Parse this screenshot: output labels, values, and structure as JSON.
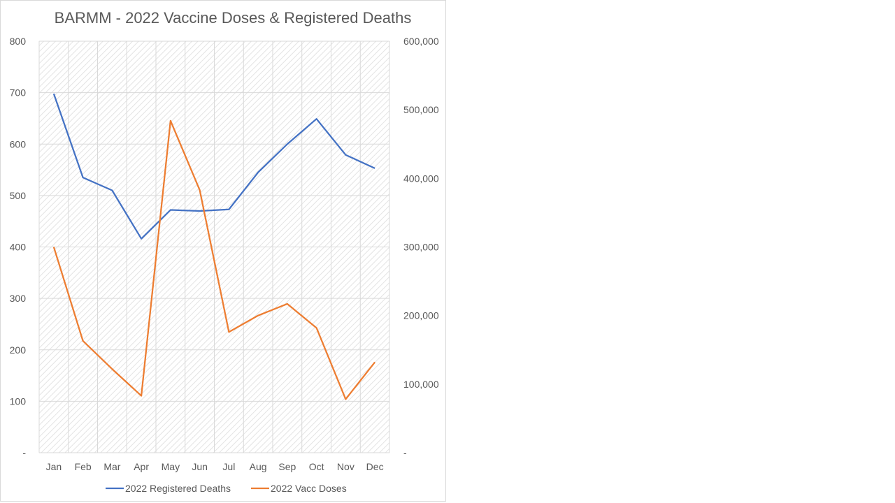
{
  "chart_data": {
    "type": "line",
    "title": "BARMM - 2022 Vaccine Doses & Registered Deaths",
    "categories": [
      "Jan",
      "Feb",
      "Mar",
      "Apr",
      "May",
      "Jun",
      "Jul",
      "Aug",
      "Sep",
      "Oct",
      "Nov",
      "Dec"
    ],
    "series": [
      {
        "name": "2022 Registered Deaths",
        "axis": "left",
        "color": "#4472c4",
        "values": [
          698,
          535,
          510,
          416,
          472,
          470,
          473,
          545,
          600,
          649,
          579,
          553
        ]
      },
      {
        "name": "2022 Vacc Doses",
        "axis": "right",
        "color": "#ed7d31",
        "values": [
          300000,
          163000,
          122000,
          83000,
          484000,
          383000,
          176000,
          200000,
          217000,
          182000,
          78000,
          132000
        ]
      }
    ],
    "y_left": {
      "min": 0,
      "max": 800,
      "ticks": [
        0,
        100,
        200,
        300,
        400,
        500,
        600,
        700,
        800
      ],
      "tick_labels": [
        "-",
        "100",
        "200",
        "300",
        "400",
        "500",
        "600",
        "700",
        "800"
      ]
    },
    "y_right": {
      "min": 0,
      "max": 600000,
      "ticks": [
        0,
        100000,
        200000,
        300000,
        400000,
        500000,
        600000
      ],
      "tick_labels": [
        "-",
        "100,000",
        "200,000",
        "300,000",
        "400,000",
        "500,000",
        "600,000"
      ]
    },
    "grid": true,
    "legend_position": "bottom"
  }
}
